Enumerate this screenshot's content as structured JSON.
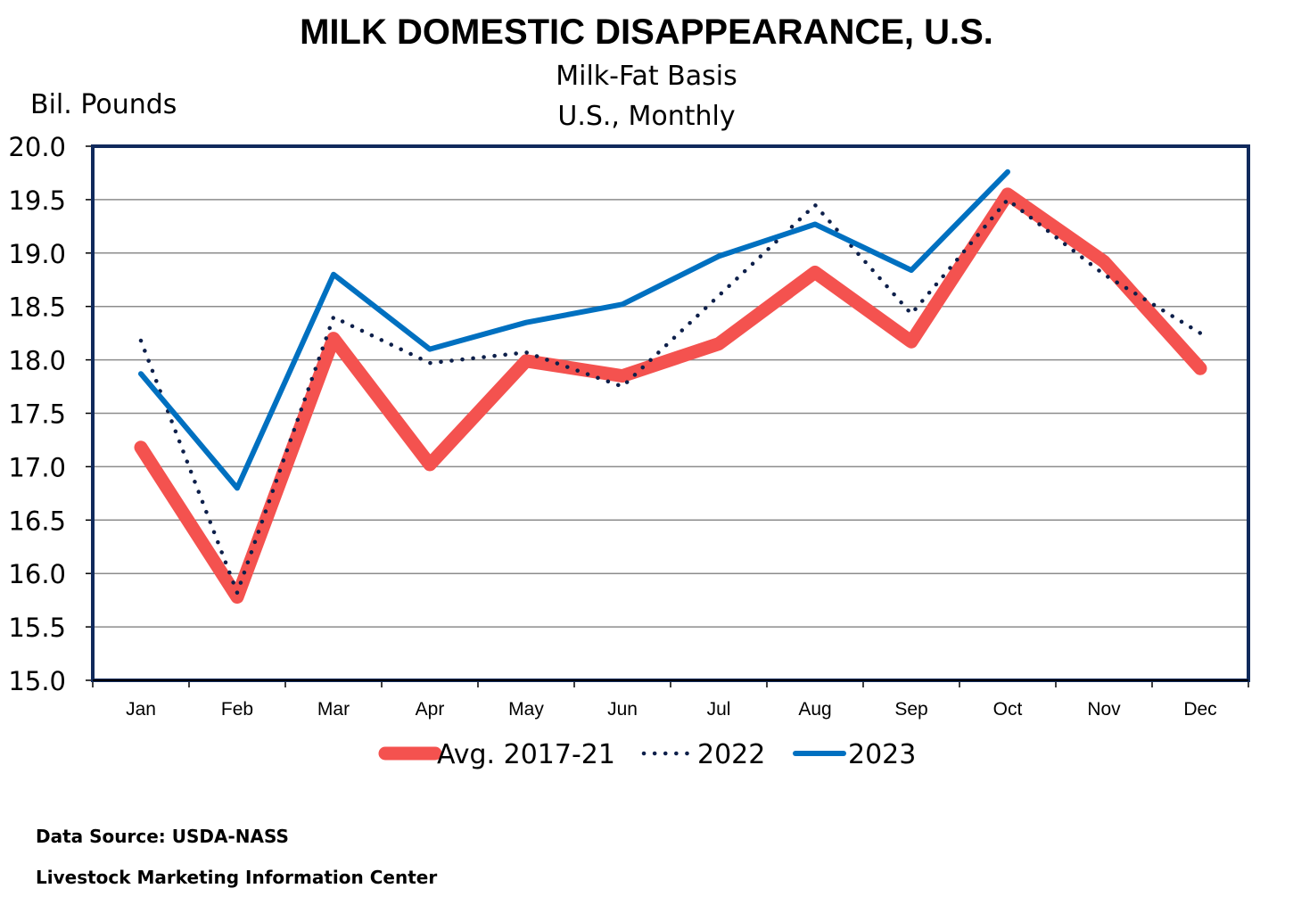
{
  "chart_data": {
    "type": "line",
    "title": "MILK DOMESTIC DISAPPEARANCE, U.S.",
    "subtitle_lines": [
      "Milk-Fat Basis",
      "U.S., Monthly"
    ],
    "ylabel": "Bil. Pounds",
    "xlabel": "",
    "ylim": [
      15.0,
      20.0
    ],
    "yticks": [
      "15.0",
      "15.5",
      "16.0",
      "16.5",
      "17.0",
      "17.5",
      "18.0",
      "18.5",
      "19.0",
      "19.5",
      "20.0"
    ],
    "categories": [
      "Jan",
      "Feb",
      "Mar",
      "Apr",
      "May",
      "Jun",
      "Jul",
      "Aug",
      "Sep",
      "Oct",
      "Nov",
      "Dec"
    ],
    "grid": true,
    "legend_position": "bottom",
    "series": [
      {
        "name": "Avg. 2017-21",
        "color": "#F4524F",
        "style": "thick",
        "values": [
          17.18,
          15.78,
          18.2,
          17.02,
          17.99,
          17.85,
          18.15,
          18.82,
          18.17,
          19.55,
          18.92,
          17.92
        ]
      },
      {
        "name": "2022",
        "color": "#0D1F4A",
        "style": "dotted",
        "values": [
          18.18,
          15.82,
          18.4,
          17.97,
          18.07,
          17.75,
          18.6,
          19.45,
          18.43,
          19.5,
          18.8,
          18.25
        ]
      },
      {
        "name": "2023",
        "color": "#0070C0",
        "style": "solid",
        "values": [
          17.87,
          16.8,
          18.8,
          18.1,
          18.35,
          18.52,
          18.97,
          19.27,
          18.84,
          19.76,
          null,
          null
        ]
      }
    ]
  },
  "footer": {
    "source": "Data Source:  USDA-NASS",
    "org": "Livestock Marketing Information Center"
  }
}
